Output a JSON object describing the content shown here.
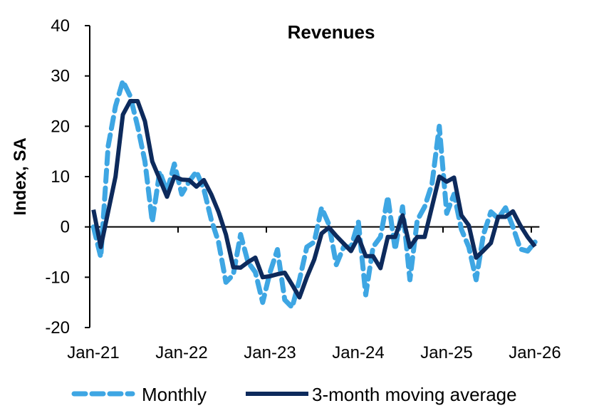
{
  "chart_data": {
    "type": "line",
    "title": "Revenues",
    "xlabel": "",
    "ylabel": "Index, SA",
    "ylim": [
      -20,
      40
    ],
    "yticks": [
      -20,
      -10,
      0,
      10,
      20,
      30,
      40
    ],
    "xtick_labels": [
      "Jan-21",
      "Jan-22",
      "Jan-23",
      "Jan-24",
      "Jan-25",
      "Jan-26"
    ],
    "grid": false,
    "legend_position": "bottom",
    "x": [
      "Jan-21",
      "Feb-21",
      "Mar-21",
      "Apr-21",
      "May-21",
      "Jun-21",
      "Jul-21",
      "Aug-21",
      "Sep-21",
      "Oct-21",
      "Nov-21",
      "Dec-21",
      "Jan-22",
      "Feb-22",
      "Mar-22",
      "Apr-22",
      "May-22",
      "Jun-22",
      "Jul-22",
      "Aug-22",
      "Sep-22",
      "Oct-22",
      "Nov-22",
      "Dec-22",
      "Jan-23",
      "Feb-23",
      "Mar-23",
      "Apr-23",
      "May-23",
      "Jun-23",
      "Jul-23",
      "Aug-23",
      "Sep-23",
      "Oct-23",
      "Nov-23",
      "Dec-23",
      "Jan-24",
      "Feb-24",
      "Mar-24",
      "Apr-24",
      "May-24",
      "Jun-24",
      "Jul-24",
      "Aug-24",
      "Sep-24",
      "Oct-24",
      "Nov-24",
      "Dec-24",
      "Jan-25",
      "Feb-25",
      "Mar-25",
      "Apr-25",
      "May-25",
      "Jun-25",
      "Jul-25",
      "Aug-25",
      "Sep-25",
      "Oct-25",
      "Nov-25",
      "Dec-25",
      "Jan-26"
    ],
    "series": [
      {
        "name": "Monthly",
        "style": "dashed",
        "color": "#3ea6e3",
        "values": [
          0,
          -6,
          16,
          24,
          29,
          26,
          20,
          13,
          1,
          11,
          7,
          12.5,
          6.5,
          9,
          11,
          7.5,
          1.5,
          -3,
          -11,
          -9.5,
          -1.5,
          -7,
          -9,
          -15,
          -9,
          -4.5,
          -14.5,
          -16,
          -10.5,
          -4,
          -3,
          3.8,
          0.5,
          -7.5,
          -4,
          -4,
          1,
          -13.5,
          -4,
          -2,
          6,
          -4.5,
          4,
          -10.5,
          1.3,
          4,
          8.5,
          20,
          2.7,
          6.5,
          -0.5,
          -4,
          -10.5,
          -1.5,
          3,
          1.7,
          3.8,
          0,
          -4.4,
          -4.8,
          -3
        ]
      },
      {
        "name": "3-month moving average",
        "style": "solid",
        "color": "#0d2a5c",
        "values": [
          3.4,
          -4,
          3,
          10,
          22.3,
          25,
          25,
          21,
          13,
          9.5,
          6,
          10,
          9.4,
          9.3,
          8,
          9.3,
          6.5,
          3,
          -1.5,
          -8,
          -8.1,
          -7,
          -6.1,
          -10,
          -9.8,
          -9.4,
          -9.1,
          -11.5,
          -14,
          -10,
          -6.5,
          -1.3,
          -0.1,
          -1.8,
          -3.3,
          -4.8,
          -2,
          -5.8,
          -5.8,
          -8.2,
          -2,
          -2,
          2.3,
          -4,
          -2,
          -2,
          4,
          10,
          9,
          9.8,
          2.3,
          0.3,
          -6.1,
          -4.7,
          -3.2,
          2,
          2,
          3.1,
          0.3,
          -2,
          -3.9
        ]
      }
    ]
  },
  "legend": {
    "monthly_label": "Monthly",
    "ma_label": "3-month moving average"
  }
}
